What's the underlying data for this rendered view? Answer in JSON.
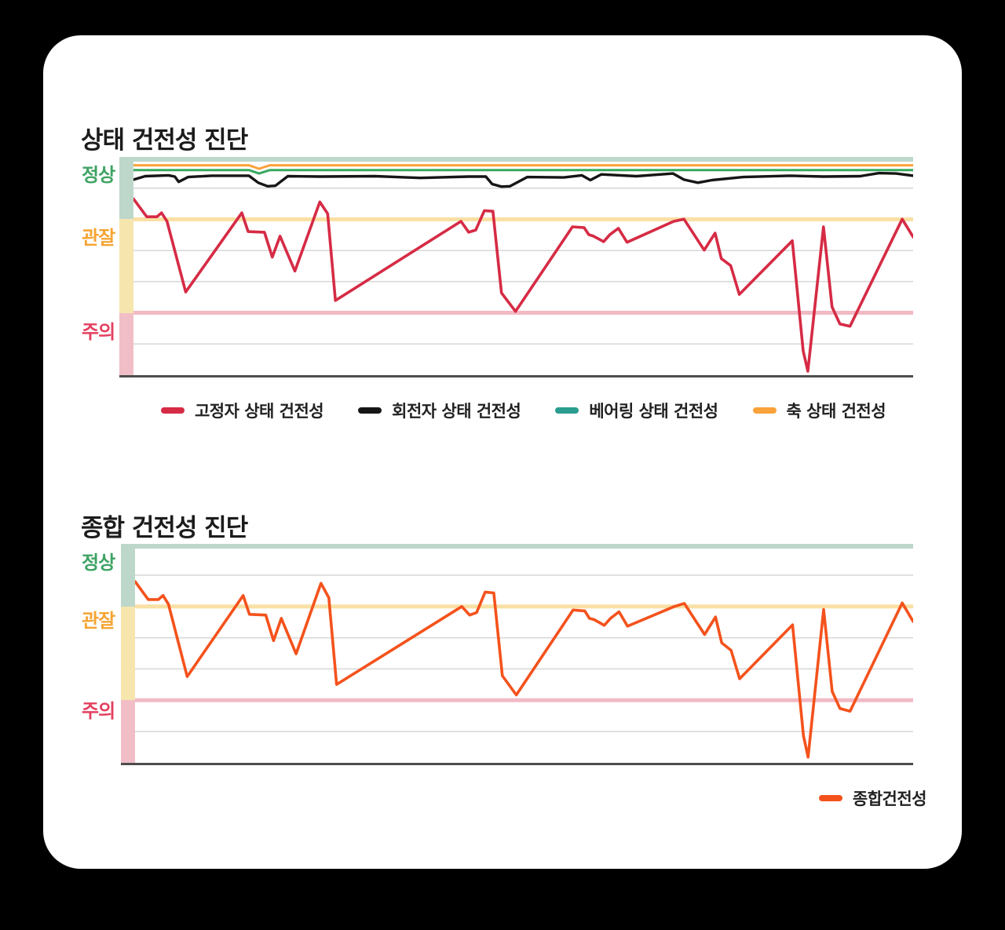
{
  "chart_data": [
    {
      "type": "line",
      "title": "상태 건전성 진단",
      "ylim": [
        0,
        100
      ],
      "zone_labels": [
        {
          "text": "정상",
          "color": "#3fa365"
        },
        {
          "text": "관잘",
          "color": "#f5a433"
        },
        {
          "text": "주의",
          "color": "#e4405f"
        }
      ],
      "thresholds": {
        "observe": 71.4,
        "caution": 28.6
      },
      "grid_values": [
        85.7,
        57.1,
        42.9,
        14.3
      ],
      "zones": {
        "top_strip": "#bdd8ca",
        "normal_band": "#bdd8ca",
        "observe_band": "#f7e5ae",
        "caution_band": "#f1bec7",
        "observe_line": "#f9e0a4",
        "caution_line": "#f1bac4",
        "grid": "#d7d7d7",
        "axis": "#4d4d4d"
      },
      "series": [
        {
          "key": "shaft",
          "name": "축 상태 건전성",
          "color": "#f9a23b",
          "width": 3,
          "points": [
            [
              0,
              96.2
            ],
            [
              0.148,
              96.2
            ],
            [
              0.161,
              94.6
            ],
            [
              0.175,
              96.2
            ],
            [
              1,
              96.2
            ]
          ]
        },
        {
          "key": "bearing",
          "name": "베어링 상태 건전성",
          "color": "#38a85e",
          "width": 3,
          "points": [
            [
              0,
              94.0
            ],
            [
              0.148,
              94.0
            ],
            [
              0.161,
              92.4
            ],
            [
              0.175,
              94.0
            ],
            [
              1,
              94.0
            ]
          ]
        },
        {
          "key": "rotor",
          "name": "회전자 상태 건전성",
          "color": "#161616",
          "width": 3.4,
          "points": [
            [
              0,
              89.6
            ],
            [
              0.015,
              91.2
            ],
            [
              0.045,
              91.6
            ],
            [
              0.053,
              91.0
            ],
            [
              0.058,
              88.6
            ],
            [
              0.07,
              90.8
            ],
            [
              0.1,
              91.4
            ],
            [
              0.148,
              91.4
            ],
            [
              0.16,
              88.2
            ],
            [
              0.172,
              86.6
            ],
            [
              0.182,
              86.8
            ],
            [
              0.198,
              91.2
            ],
            [
              0.24,
              91.0
            ],
            [
              0.31,
              91.2
            ],
            [
              0.368,
              90.4
            ],
            [
              0.43,
              91.0
            ],
            [
              0.452,
              91.0
            ],
            [
              0.46,
              87.6
            ],
            [
              0.472,
              86.4
            ],
            [
              0.483,
              86.6
            ],
            [
              0.505,
              90.8
            ],
            [
              0.552,
              90.6
            ],
            [
              0.575,
              91.6
            ],
            [
              0.586,
              89.4
            ],
            [
              0.6,
              92.0
            ],
            [
              0.645,
              91.2
            ],
            [
              0.692,
              92.4
            ],
            [
              0.706,
              89.6
            ],
            [
              0.724,
              88.2
            ],
            [
              0.742,
              89.4
            ],
            [
              0.782,
              90.8
            ],
            [
              0.842,
              91.4
            ],
            [
              0.885,
              91.0
            ],
            [
              0.932,
              91.2
            ],
            [
              0.956,
              92.6
            ],
            [
              0.978,
              92.4
            ],
            [
              1,
              91.4
            ]
          ]
        },
        {
          "key": "stator",
          "name": "고정자 상태 건전성",
          "color": "#d62b45",
          "width": 3.6,
          "points": [
            [
              0,
              80.8
            ],
            [
              0.017,
              72.6
            ],
            [
              0.03,
              72.6
            ],
            [
              0.036,
              74.4
            ],
            [
              0.043,
              70.5
            ],
            [
              0.067,
              38.1
            ],
            [
              0.139,
              74.4
            ],
            [
              0.147,
              65.8
            ],
            [
              0.168,
              65.5
            ],
            [
              0.178,
              54.1
            ],
            [
              0.188,
              63.7
            ],
            [
              0.207,
              47.7
            ],
            [
              0.239,
              79.4
            ],
            [
              0.249,
              74.0
            ],
            [
              0.259,
              34.2
            ],
            [
              0.42,
              70.5
            ],
            [
              0.43,
              65.5
            ],
            [
              0.439,
              66.5
            ],
            [
              0.45,
              75.4
            ],
            [
              0.461,
              75.1
            ],
            [
              0.472,
              37.7
            ],
            [
              0.49,
              29.2
            ],
            [
              0.563,
              68.0
            ],
            [
              0.578,
              67.6
            ],
            [
              0.584,
              64.4
            ],
            [
              0.59,
              63.7
            ],
            [
              0.603,
              61.2
            ],
            [
              0.611,
              64.4
            ],
            [
              0.622,
              67.3
            ],
            [
              0.633,
              60.9
            ],
            [
              0.693,
              70.5
            ],
            [
              0.706,
              71.5
            ],
            [
              0.732,
              57.3
            ],
            [
              0.746,
              65.1
            ],
            [
              0.754,
              53.4
            ],
            [
              0.766,
              50.2
            ],
            [
              0.777,
              37.0
            ],
            [
              0.845,
              61.6
            ],
            [
              0.859,
              11.0
            ],
            [
              0.865,
              1.8
            ],
            [
              0.885,
              68.0
            ],
            [
              0.896,
              31.3
            ],
            [
              0.906,
              23.5
            ],
            [
              0.919,
              22.4
            ],
            [
              0.986,
              71.5
            ],
            [
              1,
              63.3
            ]
          ]
        }
      ],
      "legend": [
        {
          "label": "고정자 상태 건전성",
          "color": "#d62b45"
        },
        {
          "label": "회전자 상태 건전성",
          "color": "#161616"
        },
        {
          "label": "베어링 상태 건전성",
          "color": "#2a9d8f"
        },
        {
          "label": "축 상태 건전성",
          "color": "#f9a23b"
        }
      ]
    },
    {
      "type": "line",
      "title": "종합 건전성 진단",
      "ylim": [
        0,
        100
      ],
      "zone_labels": [
        {
          "text": "정상",
          "color": "#3fa365"
        },
        {
          "text": "관잘",
          "color": "#f5a433"
        },
        {
          "text": "주의",
          "color": "#e4405f"
        }
      ],
      "thresholds": {
        "observe": 71.4,
        "caution": 28.6
      },
      "grid_values": [
        85.7,
        57.1,
        42.9,
        14.3
      ],
      "zones": {
        "top_strip": "#bdd8ca",
        "normal_band": "#bdd8ca",
        "observe_band": "#f7e5ae",
        "caution_band": "#f1bec7",
        "observe_line": "#f9e0a4",
        "caution_line": "#f1bac4",
        "grid": "#d7d7d7",
        "axis": "#4d4d4d"
      },
      "series": [
        {
          "key": "overall",
          "name": "종합건전성",
          "color": "#f4521c",
          "width": 3.6,
          "points": [
            [
              0,
              82.8
            ],
            [
              0.017,
              74.6
            ],
            [
              0.03,
              74.6
            ],
            [
              0.036,
              76.4
            ],
            [
              0.043,
              72.4
            ],
            [
              0.067,
              39.4
            ],
            [
              0.139,
              76.4
            ],
            [
              0.147,
              67.8
            ],
            [
              0.168,
              67.5
            ],
            [
              0.178,
              55.8
            ],
            [
              0.188,
              66.0
            ],
            [
              0.207,
              49.8
            ],
            [
              0.239,
              82.0
            ],
            [
              0.249,
              75.4
            ],
            [
              0.259,
              35.8
            ],
            [
              0.42,
              71.4
            ],
            [
              0.43,
              67.5
            ],
            [
              0.439,
              68.6
            ],
            [
              0.45,
              78.0
            ],
            [
              0.461,
              77.6
            ],
            [
              0.472,
              39.8
            ],
            [
              0.49,
              31.0
            ],
            [
              0.563,
              69.8
            ],
            [
              0.578,
              69.4
            ],
            [
              0.584,
              66.0
            ],
            [
              0.59,
              65.4
            ],
            [
              0.603,
              62.8
            ],
            [
              0.611,
              66.0
            ],
            [
              0.622,
              69.0
            ],
            [
              0.633,
              62.4
            ],
            [
              0.693,
              71.4
            ],
            [
              0.706,
              72.8
            ],
            [
              0.732,
              58.6
            ],
            [
              0.746,
              66.6
            ],
            [
              0.754,
              54.8
            ],
            [
              0.766,
              51.4
            ],
            [
              0.777,
              38.4
            ],
            [
              0.845,
              63.0
            ],
            [
              0.859,
              12.4
            ],
            [
              0.865,
              2.6
            ],
            [
              0.885,
              70.0
            ],
            [
              0.896,
              32.6
            ],
            [
              0.906,
              24.8
            ],
            [
              0.919,
              23.6
            ],
            [
              0.986,
              73.0
            ],
            [
              1,
              64.6
            ]
          ]
        }
      ],
      "legend": [
        {
          "label": "종합건전성",
          "color": "#f4521c"
        }
      ]
    }
  ]
}
